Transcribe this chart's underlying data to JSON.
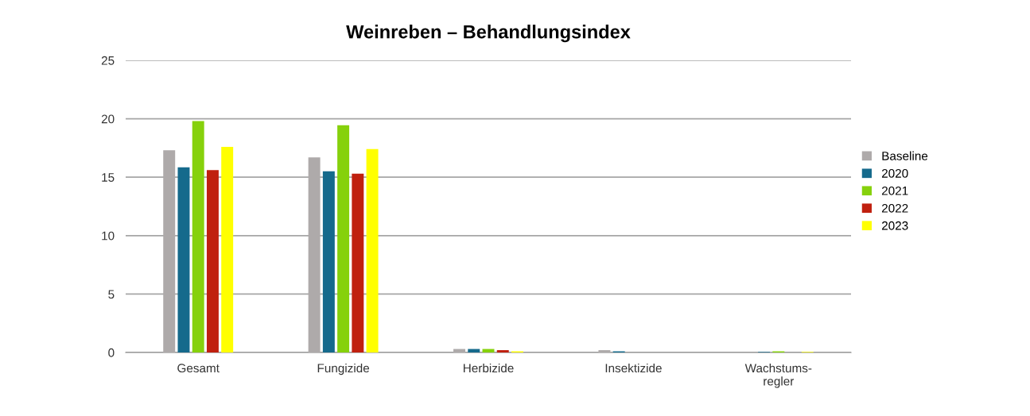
{
  "chart_data": {
    "type": "bar",
    "title": "Weinreben – Behandlungsindex",
    "categories": [
      "Gesamt",
      "Fungizide",
      "Herbizide",
      "Insektizide",
      "Wachstums-\nregler"
    ],
    "series": [
      {
        "name": "Baseline",
        "color": "#aeaaaa",
        "values": [
          17.3,
          16.7,
          0.3,
          0.2,
          0
        ]
      },
      {
        "name": "2020",
        "color": "#156a8c",
        "values": [
          15.85,
          15.5,
          0.3,
          0.1,
          0.05
        ]
      },
      {
        "name": "2021",
        "color": "#86d10c",
        "values": [
          19.8,
          19.45,
          0.3,
          0,
          0.1
        ]
      },
      {
        "name": "2022",
        "color": "#c0200f",
        "values": [
          15.6,
          15.3,
          0.2,
          0,
          0
        ]
      },
      {
        "name": "2023",
        "color": "#ffff00",
        "values": [
          17.6,
          17.4,
          0.1,
          0,
          0.05
        ]
      }
    ],
    "ylim": [
      0,
      25
    ],
    "yticks": [
      0,
      5,
      10,
      15,
      20,
      25
    ],
    "grid": "y",
    "legend": "right"
  }
}
